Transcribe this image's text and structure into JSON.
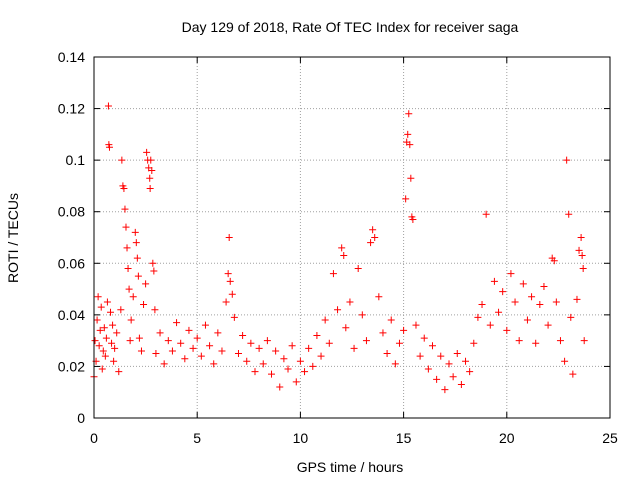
{
  "chart_data": {
    "type": "scatter",
    "title": "Day 129 of 2018, Rate Of TEC Index for receiver saga",
    "xlabel": "GPS time / hours",
    "ylabel": "ROTI / TECUs",
    "xlim": [
      0,
      25
    ],
    "ylim": [
      0,
      0.14
    ],
    "x_ticks": [
      0,
      5,
      10,
      15,
      20,
      25
    ],
    "y_ticks": [
      0,
      0.02,
      0.04,
      0.06,
      0.08,
      0.1,
      0.12,
      0.14
    ],
    "x_tick_labels": [
      "0",
      "5",
      "10",
      "15",
      "20",
      "25"
    ],
    "y_tick_labels": [
      "0",
      "0.02",
      "0.04",
      "0.06",
      "0.08",
      "0.1",
      "0.12",
      "0.14"
    ],
    "grid": true,
    "marker": "+",
    "marker_color": "#ff0000",
    "series": [
      {
        "name": "ROTI",
        "points": [
          [
            0.0,
            0.016
          ],
          [
            0.05,
            0.03
          ],
          [
            0.1,
            0.022
          ],
          [
            0.15,
            0.038
          ],
          [
            0.2,
            0.047
          ],
          [
            0.25,
            0.028
          ],
          [
            0.3,
            0.034
          ],
          [
            0.35,
            0.043
          ],
          [
            0.4,
            0.019
          ],
          [
            0.45,
            0.026
          ],
          [
            0.5,
            0.035
          ],
          [
            0.55,
            0.024
          ],
          [
            0.6,
            0.031
          ],
          [
            0.65,
            0.045
          ],
          [
            0.7,
            0.121
          ],
          [
            0.72,
            0.106
          ],
          [
            0.75,
            0.105
          ],
          [
            0.8,
            0.041
          ],
          [
            0.85,
            0.029
          ],
          [
            0.9,
            0.036
          ],
          [
            0.95,
            0.022
          ],
          [
            1.0,
            0.027
          ],
          [
            1.1,
            0.033
          ],
          [
            1.2,
            0.018
          ],
          [
            1.3,
            0.042
          ],
          [
            1.35,
            0.1
          ],
          [
            1.4,
            0.09
          ],
          [
            1.45,
            0.089
          ],
          [
            1.5,
            0.081
          ],
          [
            1.55,
            0.074
          ],
          [
            1.6,
            0.066
          ],
          [
            1.65,
            0.058
          ],
          [
            1.7,
            0.05
          ],
          [
            1.75,
            0.03
          ],
          [
            1.8,
            0.038
          ],
          [
            1.9,
            0.047
          ],
          [
            2.0,
            0.072
          ],
          [
            2.05,
            0.068
          ],
          [
            2.1,
            0.062
          ],
          [
            2.15,
            0.055
          ],
          [
            2.2,
            0.031
          ],
          [
            2.3,
            0.026
          ],
          [
            2.4,
            0.044
          ],
          [
            2.5,
            0.052
          ],
          [
            2.55,
            0.103
          ],
          [
            2.6,
            0.1
          ],
          [
            2.65,
            0.097
          ],
          [
            2.7,
            0.093
          ],
          [
            2.72,
            0.089
          ],
          [
            2.75,
            0.1
          ],
          [
            2.8,
            0.096
          ],
          [
            2.85,
            0.06
          ],
          [
            2.9,
            0.057
          ],
          [
            2.95,
            0.042
          ],
          [
            3.0,
            0.025
          ],
          [
            3.2,
            0.033
          ],
          [
            3.4,
            0.021
          ],
          [
            3.6,
            0.03
          ],
          [
            3.8,
            0.026
          ],
          [
            4.0,
            0.037
          ],
          [
            4.2,
            0.029
          ],
          [
            4.4,
            0.023
          ],
          [
            4.6,
            0.034
          ],
          [
            4.8,
            0.027
          ],
          [
            5.0,
            0.031
          ],
          [
            5.2,
            0.024
          ],
          [
            5.4,
            0.036
          ],
          [
            5.6,
            0.028
          ],
          [
            5.8,
            0.021
          ],
          [
            6.0,
            0.033
          ],
          [
            6.2,
            0.026
          ],
          [
            6.4,
            0.045
          ],
          [
            6.5,
            0.056
          ],
          [
            6.55,
            0.07
          ],
          [
            6.6,
            0.053
          ],
          [
            6.7,
            0.048
          ],
          [
            6.8,
            0.039
          ],
          [
            7.0,
            0.025
          ],
          [
            7.2,
            0.032
          ],
          [
            7.4,
            0.022
          ],
          [
            7.6,
            0.029
          ],
          [
            7.8,
            0.018
          ],
          [
            8.0,
            0.027
          ],
          [
            8.2,
            0.021
          ],
          [
            8.4,
            0.03
          ],
          [
            8.6,
            0.017
          ],
          [
            8.8,
            0.026
          ],
          [
            9.0,
            0.012
          ],
          [
            9.2,
            0.023
          ],
          [
            9.4,
            0.019
          ],
          [
            9.6,
            0.028
          ],
          [
            9.8,
            0.014
          ],
          [
            10.0,
            0.022
          ],
          [
            10.2,
            0.018
          ],
          [
            10.4,
            0.027
          ],
          [
            10.6,
            0.02
          ],
          [
            10.8,
            0.032
          ],
          [
            11.0,
            0.024
          ],
          [
            11.2,
            0.038
          ],
          [
            11.4,
            0.029
          ],
          [
            11.6,
            0.056
          ],
          [
            11.8,
            0.042
          ],
          [
            12.0,
            0.066
          ],
          [
            12.1,
            0.063
          ],
          [
            12.2,
            0.035
          ],
          [
            12.4,
            0.045
          ],
          [
            12.6,
            0.027
          ],
          [
            12.8,
            0.058
          ],
          [
            13.0,
            0.04
          ],
          [
            13.2,
            0.03
          ],
          [
            13.4,
            0.068
          ],
          [
            13.5,
            0.073
          ],
          [
            13.6,
            0.07
          ],
          [
            13.8,
            0.047
          ],
          [
            14.0,
            0.033
          ],
          [
            14.2,
            0.025
          ],
          [
            14.4,
            0.038
          ],
          [
            14.6,
            0.021
          ],
          [
            14.8,
            0.029
          ],
          [
            15.0,
            0.034
          ],
          [
            15.1,
            0.085
          ],
          [
            15.15,
            0.107
          ],
          [
            15.2,
            0.11
          ],
          [
            15.25,
            0.118
          ],
          [
            15.3,
            0.106
          ],
          [
            15.35,
            0.093
          ],
          [
            15.4,
            0.078
          ],
          [
            15.45,
            0.077
          ],
          [
            15.6,
            0.036
          ],
          [
            15.8,
            0.024
          ],
          [
            16.0,
            0.031
          ],
          [
            16.2,
            0.019
          ],
          [
            16.4,
            0.028
          ],
          [
            16.6,
            0.015
          ],
          [
            16.8,
            0.024
          ],
          [
            17.0,
            0.011
          ],
          [
            17.2,
            0.021
          ],
          [
            17.4,
            0.016
          ],
          [
            17.6,
            0.025
          ],
          [
            17.8,
            0.013
          ],
          [
            18.0,
            0.022
          ],
          [
            18.2,
            0.018
          ],
          [
            18.4,
            0.029
          ],
          [
            18.6,
            0.039
          ],
          [
            18.8,
            0.044
          ],
          [
            19.0,
            0.079
          ],
          [
            19.2,
            0.036
          ],
          [
            19.4,
            0.053
          ],
          [
            19.6,
            0.041
          ],
          [
            19.8,
            0.049
          ],
          [
            20.0,
            0.034
          ],
          [
            20.2,
            0.056
          ],
          [
            20.4,
            0.045
          ],
          [
            20.6,
            0.03
          ],
          [
            20.8,
            0.052
          ],
          [
            21.0,
            0.038
          ],
          [
            21.2,
            0.047
          ],
          [
            21.4,
            0.029
          ],
          [
            21.6,
            0.044
          ],
          [
            21.8,
            0.051
          ],
          [
            22.0,
            0.036
          ],
          [
            22.2,
            0.062
          ],
          [
            22.3,
            0.061
          ],
          [
            22.4,
            0.045
          ],
          [
            22.6,
            0.03
          ],
          [
            22.8,
            0.022
          ],
          [
            22.9,
            0.1
          ],
          [
            23.0,
            0.079
          ],
          [
            23.1,
            0.039
          ],
          [
            23.2,
            0.017
          ],
          [
            23.4,
            0.046
          ],
          [
            23.5,
            0.065
          ],
          [
            23.6,
            0.07
          ],
          [
            23.65,
            0.063
          ],
          [
            23.7,
            0.058
          ],
          [
            23.75,
            0.03
          ]
        ]
      }
    ]
  }
}
